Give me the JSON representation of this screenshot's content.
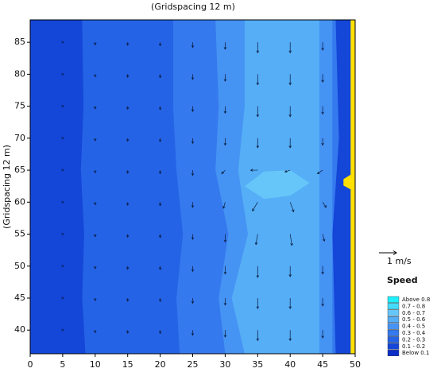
{
  "chart_data": {
    "type": "contour",
    "title": "(Gridspacing 12 m)",
    "y_label": "(Gridspacing 12 m)",
    "xlim": [
      0,
      50
    ],
    "ylim": [
      36.3,
      88.5
    ],
    "xticks": [
      0,
      5,
      10,
      15,
      20,
      25,
      30,
      35,
      40,
      45,
      50
    ],
    "yticks": [
      40,
      45,
      50,
      55,
      60,
      65,
      70,
      75,
      80,
      85
    ],
    "scale_arrow": {
      "label": "1 m/s",
      "value": 1
    },
    "legend": {
      "title": "Speed",
      "entries": [
        {
          "label": "Above  0.8",
          "color": "#1ef0ff"
        },
        {
          "label": "0.7 - 0.8",
          "color": "#45dcfb"
        },
        {
          "label": "0.6 - 0.7",
          "color": "#66c6f9"
        },
        {
          "label": "0.5 - 0.6",
          "color": "#55aef6"
        },
        {
          "label": "0.4 - 0.5",
          "color": "#4593f3"
        },
        {
          "label": "0.3 - 0.4",
          "color": "#3579ee"
        },
        {
          "label": "0.2 - 0.3",
          "color": "#2563e6"
        },
        {
          "label": "0.1 - 0.2",
          "color": "#1446d8"
        },
        {
          "label": "Below  0.1",
          "color": "#0b2fc8"
        }
      ]
    },
    "speed_regions": [
      {
        "color": "#1446d8",
        "x": [
          0,
          0,
          50,
          50
        ],
        "y": [
          36.3,
          88.5,
          88.5,
          36.3
        ]
      },
      {
        "color": "#2563e6",
        "x": [
          8.5,
          8,
          8.3,
          7.8,
          8.2,
          8,
          49,
          49
        ],
        "y": [
          36.3,
          45,
          55,
          65,
          75,
          88.5,
          88.5,
          36.3
        ]
      },
      {
        "color": "#3579ee",
        "x": [
          23,
          22.5,
          23.5,
          22.5,
          22,
          22,
          48,
          48
        ],
        "y": [
          36.3,
          45,
          55,
          65,
          75,
          88.5,
          88.5,
          36.3
        ]
      },
      {
        "color": "#4593f3",
        "x": [
          30,
          29,
          30.5,
          28.5,
          29,
          28.5,
          46.5,
          46.5
        ],
        "y": [
          36.3,
          45,
          55,
          65,
          75,
          88.5,
          88.5,
          36.3
        ]
      },
      {
        "color": "#55aef6",
        "x": [
          33,
          31,
          33.5,
          32,
          33,
          33,
          44.5,
          44.5
        ],
        "y": [
          36.3,
          45,
          55,
          65,
          75,
          88.5,
          88.5,
          36.3
        ]
      },
      {
        "color": "#66c6f9",
        "x": [
          33,
          36,
          40,
          43,
          40,
          36
        ],
        "y": [
          62.5,
          60.5,
          61,
          63,
          65,
          64.8
        ]
      },
      {
        "color": "#1446d8",
        "x": [
          47,
          46.5,
          47.5,
          47,
          49.3,
          49.3
        ],
        "y": [
          36.3,
          55,
          70,
          88.5,
          88.5,
          36.3
        ]
      }
    ],
    "land": {
      "color": "#ffe000",
      "x": [
        49.3,
        49.3,
        48.2,
        48.2,
        49.3,
        49.3,
        50,
        50
      ],
      "y": [
        36.3,
        62,
        62.6,
        63.6,
        64.3,
        88.5,
        88.5,
        36.3
      ]
    },
    "vectors": {
      "x": [
        5,
        10,
        15,
        20,
        25,
        30,
        35,
        40,
        45
      ],
      "y": [
        40,
        45,
        50,
        55,
        60,
        65,
        70,
        75,
        80,
        85
      ],
      "u": [
        [
          0,
          0,
          0,
          0,
          0,
          0,
          0,
          0,
          0
        ],
        [
          0,
          0,
          0,
          0,
          0,
          0,
          0,
          0,
          0
        ],
        [
          0,
          0,
          0,
          0,
          0,
          0,
          0,
          0,
          0
        ],
        [
          0,
          0,
          0,
          0,
          0,
          0,
          -0.1,
          0.1,
          0.1
        ],
        [
          0,
          0,
          0,
          0,
          0,
          -0.1,
          -0.3,
          0.2,
          0.2
        ],
        [
          0,
          0,
          0,
          0,
          0,
          -0.2,
          -0.4,
          -0.3,
          -0.3
        ],
        [
          0,
          0,
          0,
          0,
          0,
          0,
          0,
          0,
          0
        ],
        [
          0,
          0,
          0,
          0,
          0,
          0,
          0,
          0,
          0
        ],
        [
          0,
          0,
          0,
          0,
          0,
          0,
          0,
          0,
          0
        ],
        [
          0,
          0,
          0,
          0,
          0,
          0,
          0,
          0,
          0
        ]
      ],
      "v": [
        [
          -0.05,
          -0.15,
          -0.18,
          -0.2,
          -0.3,
          -0.4,
          -0.6,
          -0.6,
          -0.45
        ],
        [
          -0.05,
          -0.15,
          -0.18,
          -0.2,
          -0.3,
          -0.4,
          -0.6,
          -0.6,
          -0.45
        ],
        [
          -0.05,
          -0.15,
          -0.18,
          -0.2,
          -0.3,
          -0.45,
          -0.65,
          -0.6,
          -0.45
        ],
        [
          -0.05,
          -0.15,
          -0.18,
          -0.2,
          -0.3,
          -0.45,
          -0.6,
          -0.65,
          -0.4
        ],
        [
          -0.05,
          -0.15,
          -0.18,
          -0.2,
          -0.3,
          -0.35,
          -0.5,
          -0.55,
          -0.3
        ],
        [
          -0.05,
          -0.15,
          -0.18,
          -0.2,
          -0.3,
          -0.2,
          0,
          -0.1,
          -0.2
        ],
        [
          -0.05,
          -0.15,
          -0.18,
          -0.2,
          -0.3,
          -0.4,
          -0.55,
          -0.55,
          -0.4
        ],
        [
          -0.05,
          -0.15,
          -0.18,
          -0.2,
          -0.3,
          -0.4,
          -0.6,
          -0.6,
          -0.45
        ],
        [
          -0.05,
          -0.15,
          -0.18,
          -0.2,
          -0.3,
          -0.4,
          -0.6,
          -0.6,
          -0.45
        ],
        [
          -0.05,
          -0.15,
          -0.18,
          -0.2,
          -0.3,
          -0.4,
          -0.6,
          -0.6,
          -0.45
        ]
      ]
    }
  }
}
